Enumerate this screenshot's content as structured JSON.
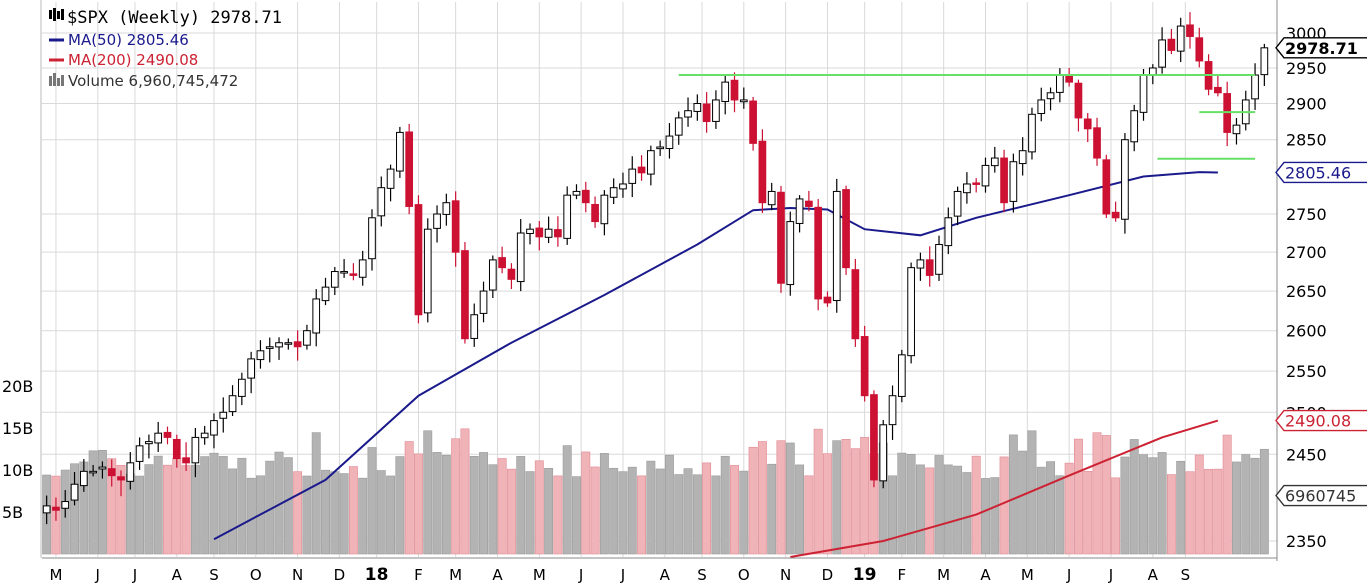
{
  "chart_data": {
    "type": "candlestick",
    "title": "$SPX (Weekly) 2978.71",
    "symbol": "$SPX",
    "period": "Weekly",
    "last_price": 2978.71,
    "legend": [
      {
        "label": "MA(50) 2805.46",
        "color": "#1a1a8c"
      },
      {
        "label": "MA(200) 2490.08",
        "color": "#cc2233"
      },
      {
        "label": "Volume 6,960,745,472",
        "color": "#8a8a8a"
      }
    ],
    "price_axis": {
      "ticks": [
        2350,
        2450,
        2500,
        2550,
        2600,
        2650,
        2700,
        2750,
        2850,
        2900,
        2950,
        3000
      ],
      "tick_labels": [
        "2350",
        "2450",
        "2500",
        "2550",
        "2600",
        "2650",
        "2700",
        "2750",
        "2850",
        "2900",
        "2950",
        "3000"
      ],
      "scale": "log"
    },
    "value_tags": [
      {
        "label": "2978.71",
        "value": 2978.71,
        "color": "#000000",
        "bold": true
      },
      {
        "label": "2805.46",
        "value": 2805.46,
        "color": "#1a1a8c"
      },
      {
        "label": "2490.08",
        "value": 2490.08,
        "color": "#cc2233"
      },
      {
        "label": "6960745",
        "value": 6960745472,
        "color": "#333333",
        "axis": "volume"
      }
    ],
    "volume_axis": {
      "ticks": [
        5,
        10,
        15,
        20
      ],
      "tick_labels": [
        "5B",
        "10B",
        "15B",
        "20B"
      ],
      "unit": "B"
    },
    "x_axis": {
      "labels": [
        "M",
        "J",
        "J",
        "A",
        "S",
        "O",
        "N",
        "D",
        "18",
        "F",
        "M",
        "A",
        "M",
        "J",
        "J",
        "A",
        "S",
        "O",
        "N",
        "D",
        "19",
        "F",
        "M",
        "A",
        "M",
        "J",
        "J",
        "A",
        "S"
      ],
      "bold_labels": [
        "18",
        "19"
      ],
      "weeks": [
        1,
        5.5,
        9.5,
        14,
        18,
        22.5,
        27,
        31.5,
        35.5,
        40,
        44,
        48.5,
        53,
        57.5,
        62,
        66.5,
        70.5,
        75,
        79.5,
        84,
        88,
        92,
        96.5,
        101,
        105.5,
        110,
        114.5,
        119,
        122.5
      ]
    },
    "horizontal_lines": [
      {
        "value": 2940,
        "from_week": 68,
        "to_week": 130,
        "color": "#66e066"
      },
      {
        "value": 2888,
        "from_week": 124,
        "to_week": 130,
        "color": "#66e066"
      },
      {
        "value": 2824,
        "from_week": 119.5,
        "to_week": 130,
        "color": "#66e066"
      }
    ],
    "weekly_closes": [
      2390,
      2385,
      2395,
      2415,
      2430,
      2430,
      2435,
      2425,
      2420,
      2440,
      2460,
      2465,
      2475,
      2470,
      2445,
      2440,
      2470,
      2475,
      2490,
      2500,
      2520,
      2540,
      2565,
      2575,
      2580,
      2585,
      2585,
      2580,
      2600,
      2640,
      2655,
      2675,
      2675,
      2670,
      2690,
      2745,
      2785,
      2810,
      2860,
      2760,
      2620,
      2730,
      2750,
      2765,
      2700,
      2590,
      2620,
      2650,
      2690,
      2680,
      2665,
      2725,
      2730,
      2720,
      2730,
      2720,
      2775,
      2780,
      2765,
      2740,
      2775,
      2785,
      2790,
      2810,
      2805,
      2835,
      2840,
      2855,
      2880,
      2890,
      2900,
      2875,
      2905,
      2930,
      2905,
      2905,
      2845,
      2765,
      2780,
      2660,
      2740,
      2770,
      2760,
      2640,
      2635,
      2780,
      2680,
      2590,
      2520,
      2420,
      2485,
      2520,
      2570,
      2680,
      2690,
      2670,
      2710,
      2745,
      2780,
      2790,
      2790,
      2815,
      2825,
      2765,
      2820,
      2835,
      2885,
      2905,
      2915,
      2940,
      2930,
      2880,
      2865,
      2825,
      2750,
      2745,
      2850,
      2890,
      2940,
      2950,
      2990,
      2975,
      3010,
      2995,
      2960,
      2920,
      2915,
      2860,
      2870,
      2905,
      2940,
      2978.71
    ],
    "ma50_path": [
      [
        18,
        2352
      ],
      [
        30,
        2420
      ],
      [
        40,
        2520
      ],
      [
        50,
        2585
      ],
      [
        60,
        2645
      ],
      [
        70,
        2710
      ],
      [
        76,
        2755
      ],
      [
        80,
        2758
      ],
      [
        84,
        2756
      ],
      [
        88,
        2730
      ],
      [
        94,
        2722
      ],
      [
        100,
        2745
      ],
      [
        110,
        2775
      ],
      [
        118,
        2800
      ],
      [
        124,
        2806
      ],
      [
        126,
        2805.46
      ]
    ],
    "ma200_path": [
      [
        80,
        2332
      ],
      [
        90,
        2350
      ],
      [
        100,
        2380
      ],
      [
        110,
        2425
      ],
      [
        120,
        2470
      ],
      [
        126,
        2490.08
      ]
    ]
  }
}
